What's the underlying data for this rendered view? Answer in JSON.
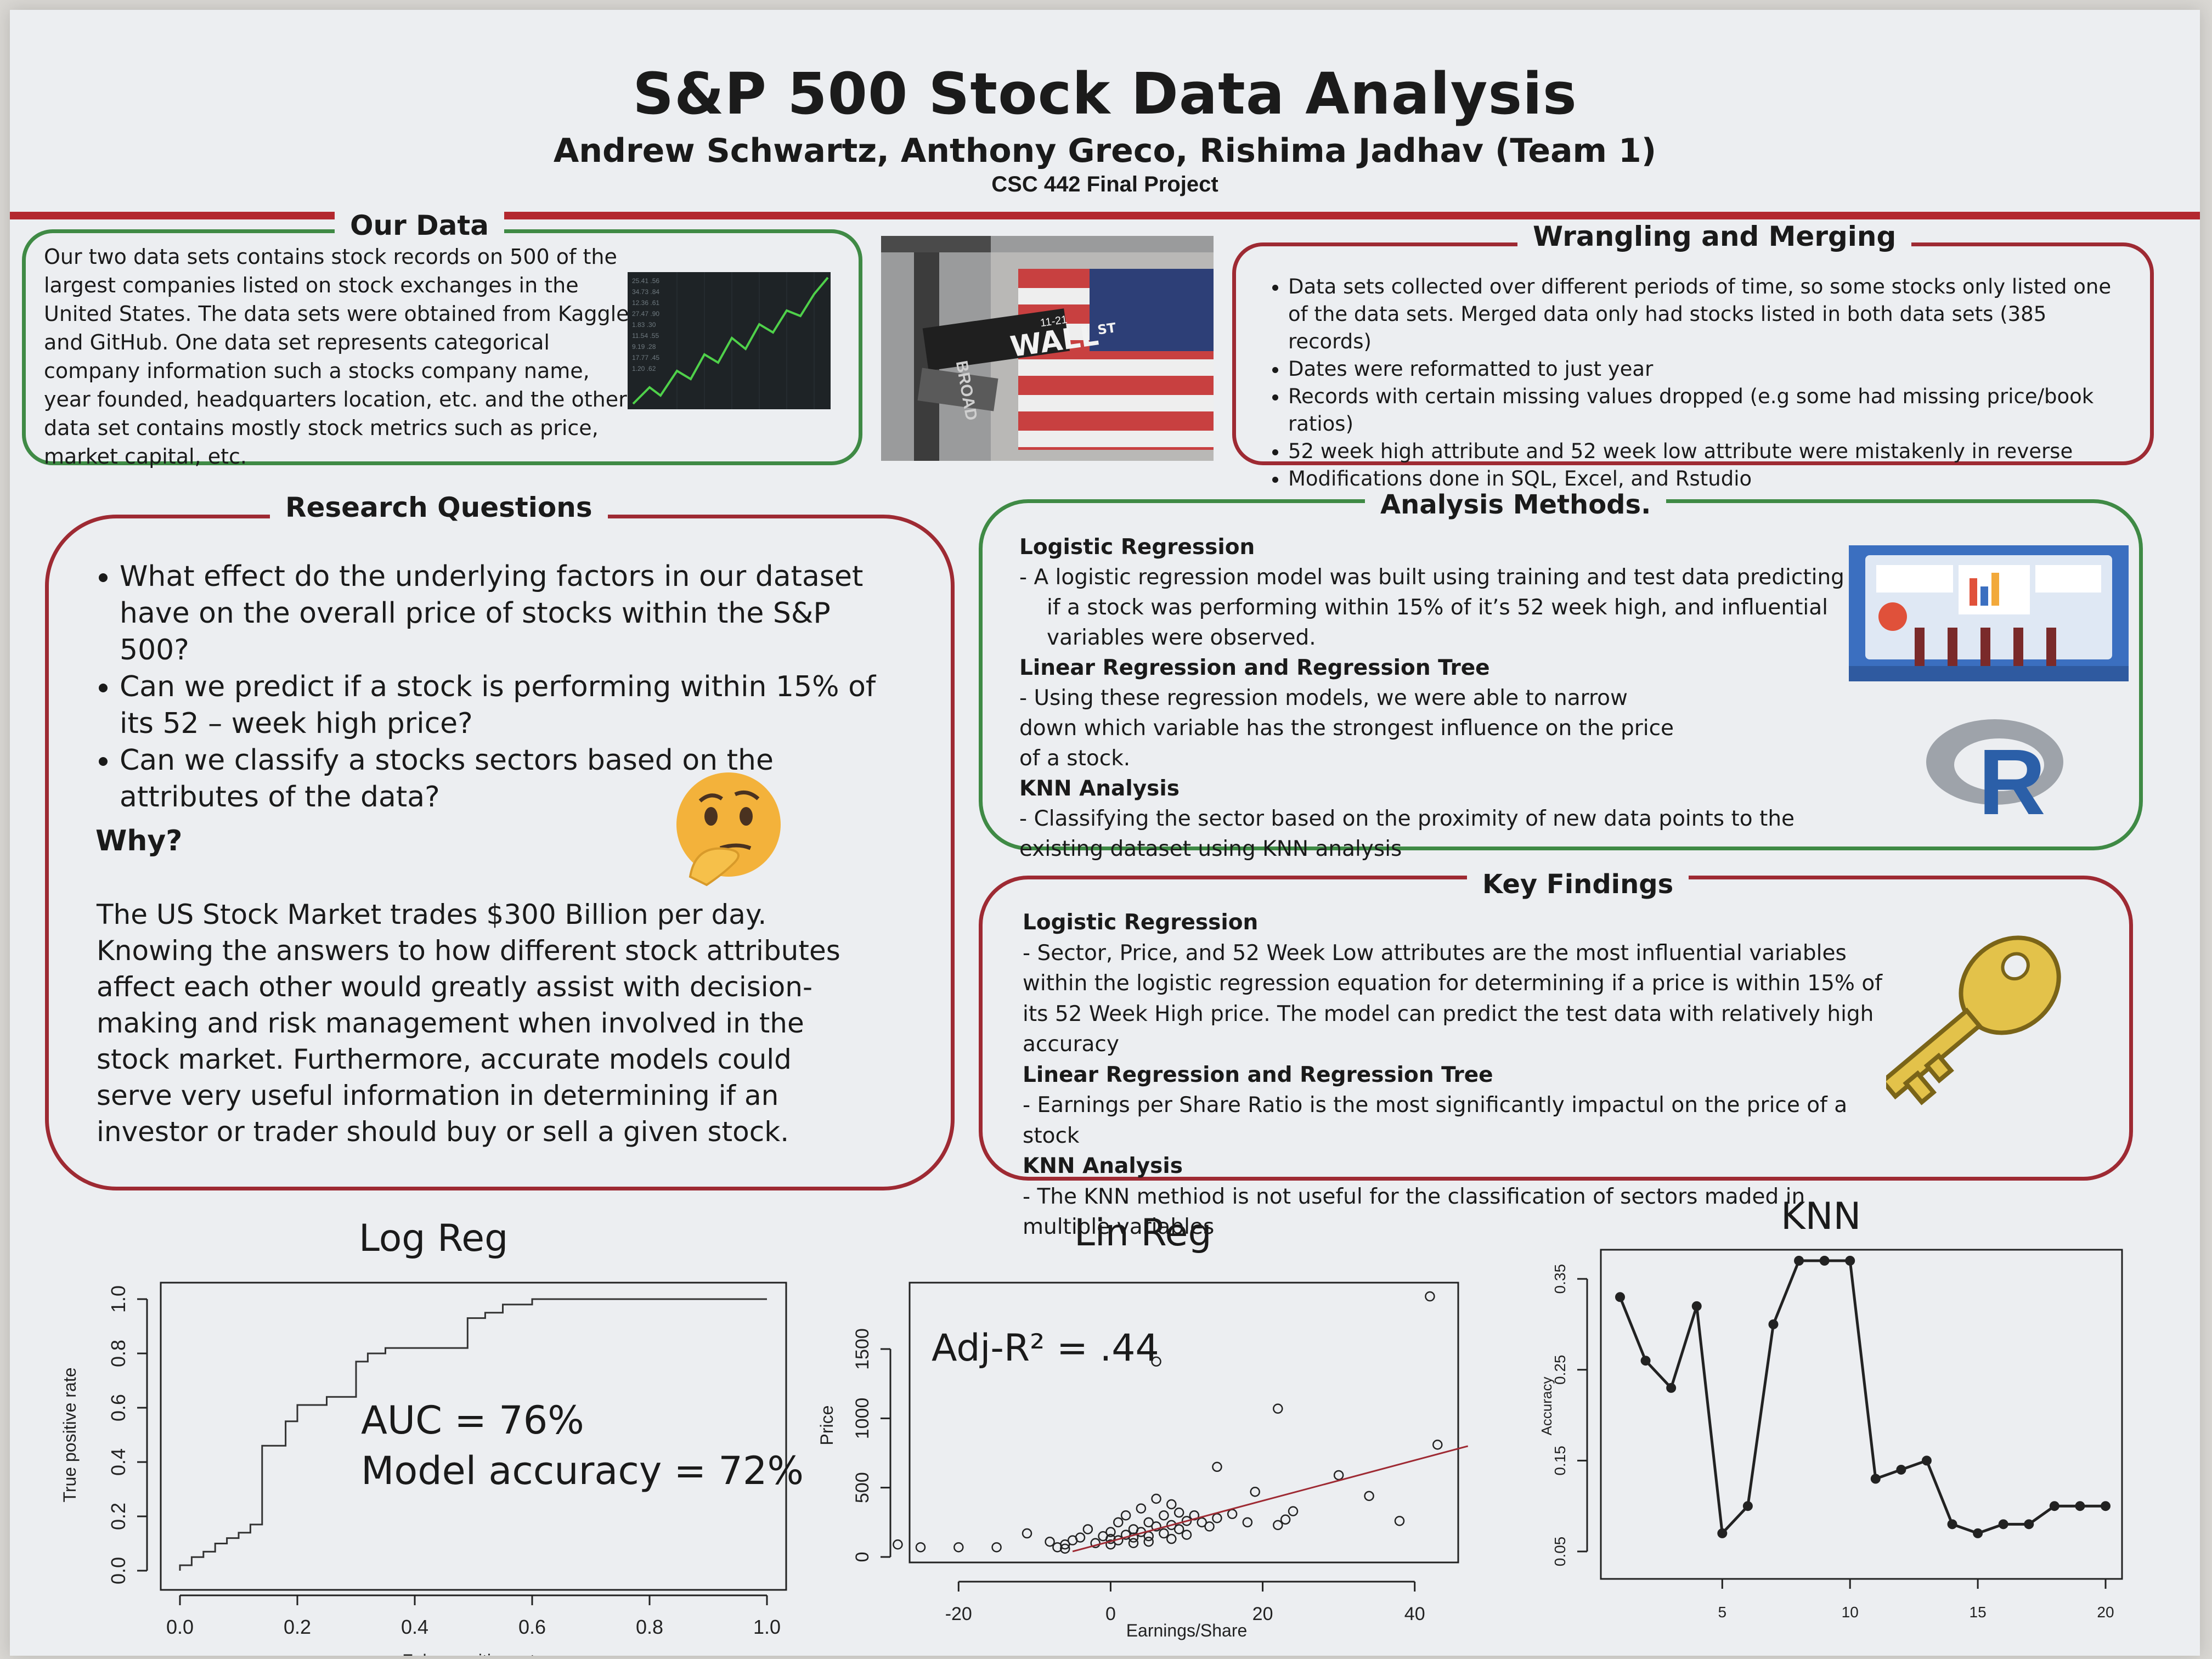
{
  "header": {
    "title": "S&P 500 Stock Data Analysis",
    "authors": "Andrew Schwartz, Anthony Greco, Rishima Jadhav (Team 1)",
    "course": "CSC 442 Final Project"
  },
  "our_data": {
    "heading": "Our Data",
    "text": "Our two data sets contains stock records on 500 of the largest companies listed on stock exchanges in the United States. The data sets were obtained from Kaggle and GitHub. One data set represents categorical company information such a stocks company name, year founded, headquarters location, etc. and the other data set contains mostly stock metrics such as price, market capital, etc."
  },
  "street_sign": {
    "wall": "WALL",
    "st": "ST",
    "broad": "BROAD",
    "number": "11-21"
  },
  "wrangling": {
    "heading": "Wrangling and Merging",
    "items": [
      "Data sets collected over different periods of time, so some stocks only listed one of the data sets. Merged data only had stocks listed in both data sets (385 records)",
      "Dates were reformatted to just year",
      "Records with certain missing values dropped (e.g some had missing price/book ratios)",
      "52 week high attribute and 52 week low attribute were mistakenly in reverse",
      "Modifications done in SQL, Excel, and Rstudio"
    ]
  },
  "research": {
    "heading": "Research Questions",
    "questions": [
      "What effect do the underlying factors in our dataset have on the overall price of stocks within the S&P 500?",
      "Can we predict if a stock is performing within 15% of its 52 – week high price?",
      "Can we classify a stocks sectors based on the attributes of the data?"
    ],
    "why_label": "Why?",
    "why_text": "The US Stock Market trades $300 Billion per day. Knowing the answers to how different stock attributes affect each other would greatly assist with decision-making and risk management when involved in the stock market. Furthermore, accurate models could serve very useful information in determining if an investor or trader should buy or sell a given stock."
  },
  "methods": {
    "heading": "Analysis Methods.",
    "logreg_h": "Logistic Regression",
    "logreg_t": "-   A logistic regression model was built using training and test data predicting if a stock was performing within 15% of it’s 52 week high, and influential variables were observed.",
    "linreg_h": "Linear Regression and Regression Tree",
    "linreg_t": " - Using these regression models, we were able to narrow down which variable has the strongest influence on the price of a stock.",
    "knn_h": "KNN Analysis",
    "knn_t": "- Classifying the sector based on the proximity of new data points to the existing dataset using KNN analysis",
    "r_logo": "R"
  },
  "findings": {
    "heading": "Key Findings",
    "logreg_h": "Logistic Regression",
    "logreg_t": "  - Sector, Price, and 52 Week Low attributes are the most influential variables within the logistic regression equation for determining if a price is within 15% of its 52 Week High price. The model can predict the test data with relatively high accuracy",
    "linreg_h": "Linear Regression and Regression Tree",
    "linreg_t": "  - Earnings per  Share Ratio is the most significantly impactul on the price of a stock",
    "knn_h": "KNN Analysis",
    "knn_t": "- The KNN methiod is not useful for the classification of sectors maded in multiple variables"
  },
  "charts": {
    "logreg_title": "Log Reg",
    "logreg_auc": "AUC  = 76%",
    "logreg_acc": "Model accuracy = 72%",
    "linreg_title": "Lin Reg",
    "linreg_annot": "Adj-R² = .44",
    "knn_title": "KNN"
  },
  "chart_data": [
    {
      "type": "line",
      "title": "Log Reg",
      "xlabel": "False positive rate",
      "ylabel": "True positive rate",
      "xlim": [
        0,
        1
      ],
      "ylim": [
        0,
        1
      ],
      "xticks": [
        "0.0",
        "0.2",
        "0.4",
        "0.6",
        "0.8",
        "1.0"
      ],
      "yticks": [
        "0.0",
        "0.2",
        "0.4",
        "0.6",
        "0.8",
        "1.0"
      ],
      "annotations": [
        "AUC  = 76%",
        "Model accuracy = 72%"
      ],
      "points": [
        [
          0,
          0
        ],
        [
          0,
          0.02
        ],
        [
          0.02,
          0.02
        ],
        [
          0.02,
          0.05
        ],
        [
          0.04,
          0.05
        ],
        [
          0.04,
          0.07
        ],
        [
          0.06,
          0.07
        ],
        [
          0.06,
          0.1
        ],
        [
          0.08,
          0.1
        ],
        [
          0.08,
          0.12
        ],
        [
          0.1,
          0.12
        ],
        [
          0.1,
          0.14
        ],
        [
          0.12,
          0.14
        ],
        [
          0.12,
          0.17
        ],
        [
          0.14,
          0.17
        ],
        [
          0.14,
          0.46
        ],
        [
          0.18,
          0.46
        ],
        [
          0.18,
          0.55
        ],
        [
          0.2,
          0.55
        ],
        [
          0.2,
          0.61
        ],
        [
          0.25,
          0.61
        ],
        [
          0.25,
          0.64
        ],
        [
          0.3,
          0.64
        ],
        [
          0.3,
          0.77
        ],
        [
          0.32,
          0.77
        ],
        [
          0.32,
          0.8
        ],
        [
          0.35,
          0.8
        ],
        [
          0.35,
          0.82
        ],
        [
          0.49,
          0.82
        ],
        [
          0.49,
          0.93
        ],
        [
          0.52,
          0.93
        ],
        [
          0.52,
          0.95
        ],
        [
          0.55,
          0.95
        ],
        [
          0.55,
          0.98
        ],
        [
          0.6,
          0.98
        ],
        [
          0.6,
          1.0
        ],
        [
          1.0,
          1.0
        ]
      ]
    },
    {
      "type": "scatter",
      "title": "Lin Reg",
      "xlabel": "Earnings/Share",
      "ylabel": "Price",
      "xlim": [
        -25,
        45
      ],
      "ylim": [
        0,
        1900
      ],
      "xticks": [
        "-20",
        "0",
        "20",
        "40"
      ],
      "yticks": [
        "0",
        "500",
        "1000",
        "1500"
      ],
      "annotations": [
        "Adj-R² = .44"
      ],
      "fit_line": [
        [
          -5,
          40
        ],
        [
          47,
          800
        ]
      ],
      "points": [
        [
          -28,
          90
        ],
        [
          -25,
          70
        ],
        [
          -20,
          70
        ],
        [
          -15,
          70
        ],
        [
          -11,
          170
        ],
        [
          -8,
          110
        ],
        [
          -7,
          70
        ],
        [
          -6,
          90
        ],
        [
          -5,
          120
        ],
        [
          -4,
          140
        ],
        [
          -3,
          200
        ],
        [
          -2,
          100
        ],
        [
          -1,
          150
        ],
        [
          0,
          130
        ],
        [
          0,
          180
        ],
        [
          1,
          120
        ],
        [
          1,
          250
        ],
        [
          2,
          160
        ],
        [
          2,
          300
        ],
        [
          3,
          140
        ],
        [
          3,
          200
        ],
        [
          4,
          180
        ],
        [
          4,
          350
        ],
        [
          5,
          150
        ],
        [
          5,
          250
        ],
        [
          6,
          220
        ],
        [
          6,
          420
        ],
        [
          7,
          170
        ],
        [
          7,
          300
        ],
        [
          8,
          230
        ],
        [
          8,
          380
        ],
        [
          9,
          200
        ],
        [
          9,
          320
        ],
        [
          10,
          260
        ],
        [
          11,
          300
        ],
        [
          12,
          250
        ],
        [
          13,
          220
        ],
        [
          14,
          280
        ],
        [
          14,
          650
        ],
        [
          16,
          310
        ],
        [
          18,
          250
        ],
        [
          19,
          470
        ],
        [
          22,
          230
        ],
        [
          22,
          1070
        ],
        [
          23,
          270
        ],
        [
          24,
          330
        ],
        [
          30,
          590
        ],
        [
          34,
          440
        ],
        [
          38,
          260
        ],
        [
          42,
          1880
        ],
        [
          43,
          810
        ],
        [
          6,
          1410
        ],
        [
          -6,
          60
        ],
        [
          0,
          90
        ],
        [
          3,
          100
        ],
        [
          5,
          110
        ],
        [
          8,
          130
        ],
        [
          10,
          160
        ]
      ]
    },
    {
      "type": "line",
      "title": "KNN",
      "xlabel": "",
      "ylabel": "Accuracy",
      "xlim": [
        1,
        20
      ],
      "ylim": [
        0.05,
        0.37
      ],
      "xticks": [
        "5",
        "10",
        "15",
        "20"
      ],
      "yticks": [
        "0.05",
        "0.15",
        "0.25",
        "0.35"
      ],
      "x": [
        1,
        2,
        3,
        4,
        5,
        6,
        7,
        8,
        9,
        10,
        11,
        12,
        13,
        14,
        15,
        16,
        17,
        18,
        19,
        20
      ],
      "values": [
        0.33,
        0.26,
        0.23,
        0.32,
        0.07,
        0.1,
        0.3,
        0.37,
        0.37,
        0.37,
        0.13,
        0.14,
        0.15,
        0.08,
        0.07,
        0.08,
        0.08,
        0.1,
        0.1,
        0.1
      ]
    }
  ]
}
